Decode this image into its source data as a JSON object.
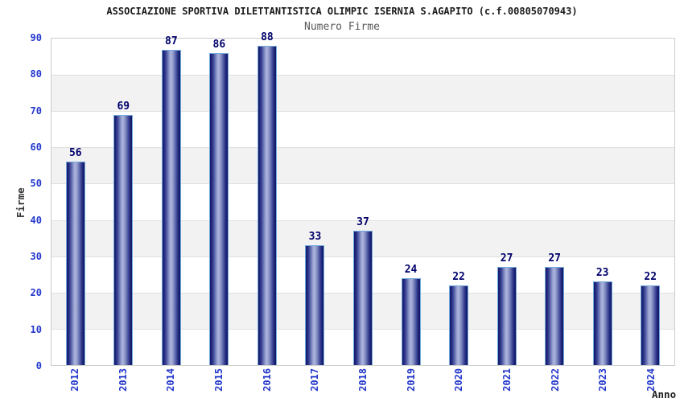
{
  "chart_data": {
    "type": "bar",
    "title": "ASSOCIAZIONE SPORTIVA DILETTANTISTICA OLIMPIC ISERNIA S.AGAPITO (c.f.00805070943)",
    "subtitle": "Numero Firme",
    "ylabel": "Firme",
    "xlabel": "Anno",
    "categories": [
      "2012",
      "2013",
      "2014",
      "2015",
      "2016",
      "2017",
      "2018",
      "2019",
      "2020",
      "2021",
      "2022",
      "2023",
      "2024"
    ],
    "values": [
      56,
      69,
      87,
      86,
      88,
      33,
      37,
      24,
      22,
      27,
      27,
      23,
      22
    ],
    "ylim": [
      0,
      90
    ],
    "ytick_step": 10,
    "grid": "horizontal-gridlines-with-alternating-bands",
    "legend_position": "none",
    "colors": {
      "tick_label": "#2337cc",
      "value_label": "#00006b",
      "title": "#1a1a1a",
      "subtitle": "#595959",
      "axis_title": "#333333",
      "plot_border": "#cccccc",
      "gridline": "#e0e0e0",
      "band_fill": "#f2f2f2",
      "bar_border": "#74aade",
      "bar_dark": "#141a66",
      "bar_light": "#aab2da"
    }
  }
}
